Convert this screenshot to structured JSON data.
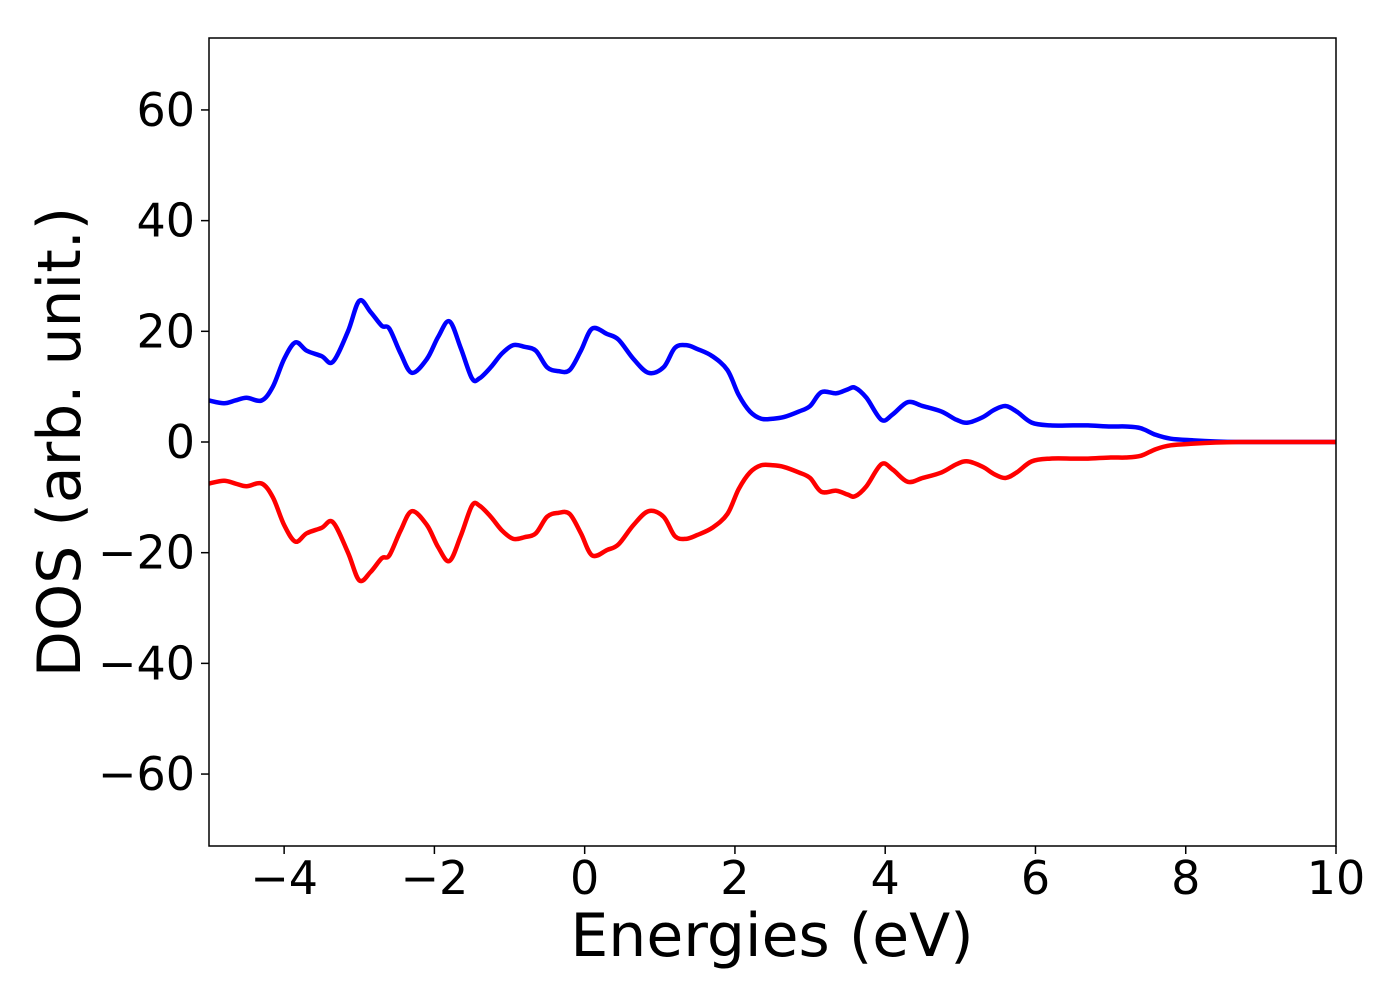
{
  "chart_data": {
    "type": "line",
    "title": "",
    "xlabel": "Energies (eV)",
    "ylabel": "DOS (arb. unit.)",
    "xlim": [
      -5,
      10
    ],
    "ylim": [
      -73,
      73
    ],
    "x_ticks": [
      -4,
      -2,
      0,
      2,
      4,
      6,
      8,
      10
    ],
    "x_tick_labels": [
      "−4",
      "−2",
      "0",
      "2",
      "4",
      "6",
      "8",
      "10"
    ],
    "y_ticks": [
      60,
      40,
      20,
      0,
      -20,
      -40,
      -60
    ],
    "y_tick_labels": [
      "60",
      "40",
      "20",
      "0",
      "−20",
      "−40",
      "−60"
    ],
    "grid": false,
    "legend": "none",
    "colors": {
      "spin_up": "#0000ff",
      "spin_down": "#ff0000",
      "axes": "#000000"
    },
    "series": [
      {
        "color": "#0000ff",
        "x": [
          -5.0,
          -4.8,
          -4.65,
          -4.5,
          -4.3,
          -4.15,
          -4.0,
          -3.85,
          -3.7,
          -3.5,
          -3.35,
          -3.15,
          -3.0,
          -2.85,
          -2.7,
          -2.6,
          -2.45,
          -2.3,
          -2.1,
          -1.95,
          -1.8,
          -1.65,
          -1.5,
          -1.4,
          -1.25,
          -1.1,
          -0.95,
          -0.8,
          -0.65,
          -0.5,
          -0.35,
          -0.2,
          -0.05,
          0.1,
          0.3,
          0.45,
          0.65,
          0.85,
          1.05,
          1.2,
          1.35,
          1.5,
          1.7,
          1.9,
          2.05,
          2.2,
          2.35,
          2.5,
          2.65,
          2.85,
          3.0,
          3.15,
          3.35,
          3.5,
          3.6,
          3.75,
          3.95,
          4.1,
          4.3,
          4.5,
          4.75,
          4.95,
          5.1,
          5.3,
          5.45,
          5.6,
          5.75,
          5.95,
          6.2,
          6.5,
          6.7,
          7.0,
          7.2,
          7.4,
          7.6,
          7.8,
          8.1,
          8.4,
          8.7,
          9.0,
          9.5,
          10.0
        ],
        "y": [
          7.5,
          7.0,
          7.5,
          8.0,
          7.5,
          10.0,
          15.0,
          18.0,
          16.5,
          15.5,
          14.5,
          20.0,
          25.5,
          23.5,
          21.0,
          20.5,
          16.0,
          12.5,
          15.0,
          19.0,
          21.8,
          17.0,
          11.5,
          11.5,
          13.5,
          16.0,
          17.5,
          17.2,
          16.5,
          13.5,
          12.8,
          13.0,
          16.5,
          20.5,
          19.5,
          18.5,
          15.0,
          12.5,
          13.5,
          17.0,
          17.5,
          16.8,
          15.5,
          13.0,
          8.5,
          5.5,
          4.2,
          4.2,
          4.5,
          5.5,
          6.5,
          9.0,
          8.8,
          9.5,
          9.8,
          8.0,
          4.0,
          5.0,
          7.2,
          6.5,
          5.5,
          4.0,
          3.5,
          4.5,
          5.8,
          6.5,
          5.5,
          3.5,
          3.0,
          3.0,
          3.0,
          2.8,
          2.8,
          2.5,
          1.3,
          0.6,
          0.3,
          0.1,
          0.0,
          0.0,
          0.0,
          0.0
        ]
      },
      {
        "color": "#ff0000",
        "x": [
          -5.0,
          -4.8,
          -4.65,
          -4.5,
          -4.3,
          -4.15,
          -4.0,
          -3.85,
          -3.7,
          -3.5,
          -3.35,
          -3.15,
          -3.0,
          -2.85,
          -2.7,
          -2.6,
          -2.45,
          -2.3,
          -2.1,
          -1.95,
          -1.8,
          -1.65,
          -1.5,
          -1.4,
          -1.25,
          -1.1,
          -0.95,
          -0.8,
          -0.65,
          -0.5,
          -0.35,
          -0.2,
          -0.05,
          0.1,
          0.3,
          0.45,
          0.65,
          0.85,
          1.05,
          1.2,
          1.35,
          1.5,
          1.7,
          1.9,
          2.05,
          2.2,
          2.35,
          2.5,
          2.65,
          2.85,
          3.0,
          3.15,
          3.35,
          3.5,
          3.6,
          3.75,
          3.95,
          4.1,
          4.3,
          4.5,
          4.75,
          4.95,
          5.1,
          5.3,
          5.45,
          5.6,
          5.75,
          5.95,
          6.2,
          6.5,
          6.7,
          7.0,
          7.2,
          7.4,
          7.6,
          7.8,
          8.1,
          8.4,
          8.7,
          9.0,
          9.5,
          10.0
        ],
        "y": [
          -7.5,
          -7.0,
          -7.5,
          -8.0,
          -7.5,
          -10.0,
          -15.0,
          -18.0,
          -16.5,
          -15.5,
          -14.5,
          -20.0,
          -25.0,
          -23.5,
          -21.0,
          -20.5,
          -16.0,
          -12.5,
          -15.0,
          -19.0,
          -21.5,
          -17.0,
          -11.5,
          -11.5,
          -13.5,
          -16.0,
          -17.5,
          -17.2,
          -16.5,
          -13.5,
          -12.8,
          -13.0,
          -16.5,
          -20.5,
          -19.5,
          -18.5,
          -15.0,
          -12.5,
          -13.5,
          -17.0,
          -17.5,
          -16.8,
          -15.5,
          -13.0,
          -8.5,
          -5.5,
          -4.2,
          -4.2,
          -4.5,
          -5.5,
          -6.5,
          -9.0,
          -8.8,
          -9.5,
          -9.8,
          -8.0,
          -4.0,
          -5.0,
          -7.2,
          -6.5,
          -5.5,
          -4.0,
          -3.5,
          -4.5,
          -5.8,
          -6.5,
          -5.5,
          -3.5,
          -3.0,
          -3.0,
          -3.0,
          -2.8,
          -2.8,
          -2.5,
          -1.3,
          -0.6,
          -0.3,
          -0.1,
          0.0,
          0.0,
          0.0,
          0.0
        ]
      }
    ]
  }
}
